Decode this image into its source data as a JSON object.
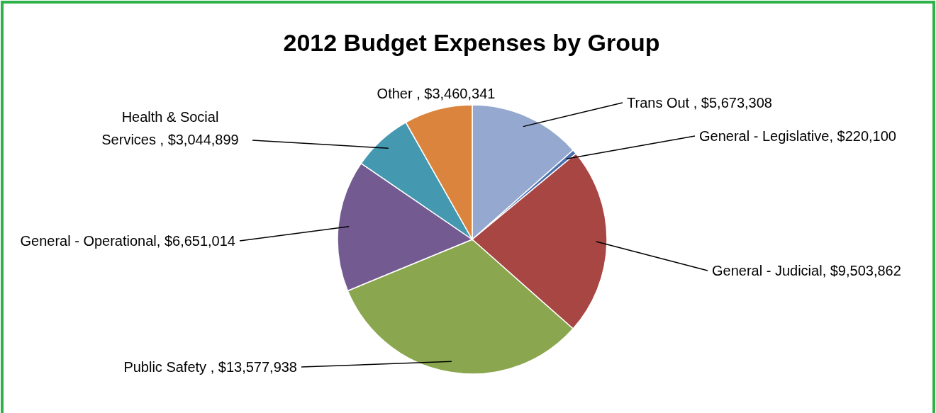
{
  "chart_data": {
    "type": "pie",
    "title": "2012 Budget Expenses by Group",
    "categories": [
      "Trans Out ",
      "General - Legislative",
      "General - Judicial",
      "Public Safety ",
      "General - Operational",
      "Health & Social Services ",
      "Other "
    ],
    "values": [
      5673308,
      220100,
      9503862,
      13577938,
      6651014,
      3044899,
      3460341
    ],
    "value_labels": [
      "$5,673,308",
      "$220,100",
      "$9,503,862",
      "$13,577,938",
      "$6,651,014",
      "$3,044,899",
      "$3,460,341"
    ],
    "colors": [
      "#95a9d0",
      "#4a70b0",
      "#a84644",
      "#8aa74f",
      "#735a90",
      "#4499b0",
      "#db843d"
    ]
  }
}
